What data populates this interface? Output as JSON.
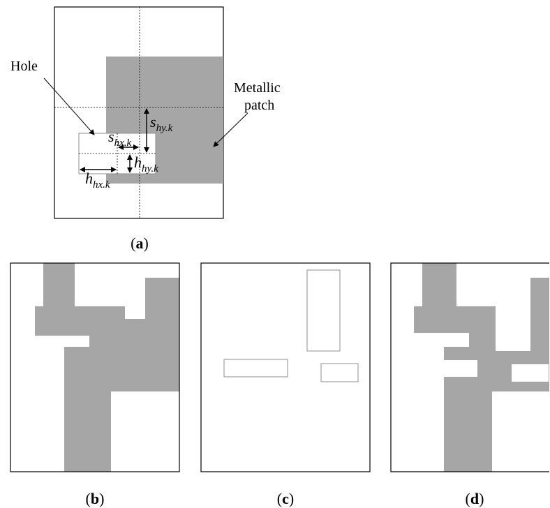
{
  "colors": {
    "patch": "#a6a6a6",
    "frame": "#000000",
    "hole_outline": "#8c8c8c",
    "background": "#ffffff"
  },
  "panel_a": {
    "hole_label": "Hole",
    "metallic_label_line1": "Metallic",
    "metallic_label_line2": "patch",
    "dims": {
      "s_hy": {
        "base": "s",
        "sub": "hy.k"
      },
      "s_hx": {
        "base": "s",
        "sub": "hx.k"
      },
      "h_hy": {
        "base": "h",
        "sub": "hy.k"
      },
      "h_hx": {
        "base": "h",
        "sub": "hx.k"
      }
    },
    "caption": {
      "open": "(",
      "letter": "a",
      "close": ")"
    }
  },
  "panel_b": {
    "caption": {
      "open": "(",
      "letter": "b",
      "close": ")"
    }
  },
  "panel_c": {
    "caption": {
      "open": "(",
      "letter": "c",
      "close": ")"
    }
  },
  "panel_d": {
    "caption": {
      "open": "(",
      "letter": "d",
      "close": ")"
    }
  }
}
